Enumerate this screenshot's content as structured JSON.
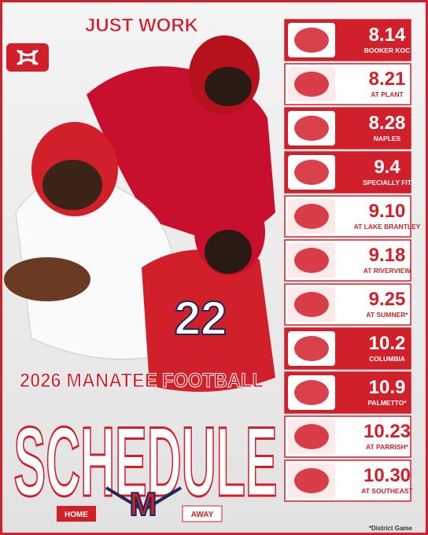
{
  "header": {
    "slogan": "JUST WORK",
    "title": "2026 MANATEE FOOTBALL",
    "subtitle": "SCHEDULE"
  },
  "legend": {
    "home": "HOME",
    "away": "AWAY"
  },
  "games": [
    {
      "date": "8.14",
      "opponent": "BOOKER KOC",
      "home": true
    },
    {
      "date": "8.21",
      "opponent": "AT PLANT",
      "home": false
    },
    {
      "date": "8.28",
      "opponent": "NAPLES",
      "home": true
    },
    {
      "date": "9.4",
      "opponent": "SPECIALLY FIT",
      "home": true
    },
    {
      "date": "9.10",
      "opponent": "AT LAKE BRANTLEY",
      "home": false
    },
    {
      "date": "9.18",
      "opponent": "AT RIVERVIEW",
      "home": false
    },
    {
      "date": "9.25",
      "opponent": "AT SUMNER*",
      "home": false
    },
    {
      "date": "10.2",
      "opponent": "COLUMBIA",
      "home": true
    },
    {
      "date": "10.9",
      "opponent": "PALMETTO*",
      "home": true
    },
    {
      "date": "10.23",
      "opponent": "AT PARRISH*",
      "home": false
    },
    {
      "date": "10.30",
      "opponent": "AT SOUTHEAST",
      "home": false
    }
  ],
  "footnote": "*District Game"
}
